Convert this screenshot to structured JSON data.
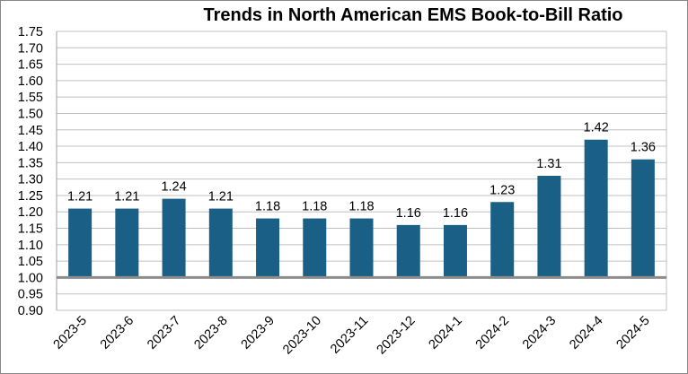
{
  "chart_data": {
    "type": "bar",
    "title": "Trends in North American EMS Book-to-Bill Ratio",
    "xlabel": "",
    "ylabel": "",
    "categories": [
      "2023-5",
      "2023-6",
      "2023-7",
      "2023-8",
      "2023-9",
      "2023-10",
      "2023-11",
      "2023-12",
      "2024-1",
      "2024-2",
      "2024-3",
      "2024-4",
      "2024-5"
    ],
    "values": [
      1.21,
      1.21,
      1.24,
      1.21,
      1.18,
      1.18,
      1.18,
      1.16,
      1.16,
      1.23,
      1.31,
      1.42,
      1.36
    ],
    "data_labels": [
      "1.21",
      "1.21",
      "1.24",
      "1.21",
      "1.18",
      "1.18",
      "1.18",
      "1.16",
      "1.16",
      "1.23",
      "1.31",
      "1.42",
      "1.36"
    ],
    "baseline": 1.0,
    "ylim": [
      0.9,
      1.75
    ],
    "yticks": [
      "0.90",
      "0.95",
      "1.00",
      "1.05",
      "1.10",
      "1.15",
      "1.20",
      "1.25",
      "1.30",
      "1.35",
      "1.40",
      "1.45",
      "1.50",
      "1.55",
      "1.60",
      "1.65",
      "1.70",
      "1.75"
    ],
    "grid": true,
    "legend": "none",
    "colors": {
      "bar": "#1a5f85",
      "grid": "#c0c0c0",
      "baseline": "#8c8c8c"
    }
  }
}
